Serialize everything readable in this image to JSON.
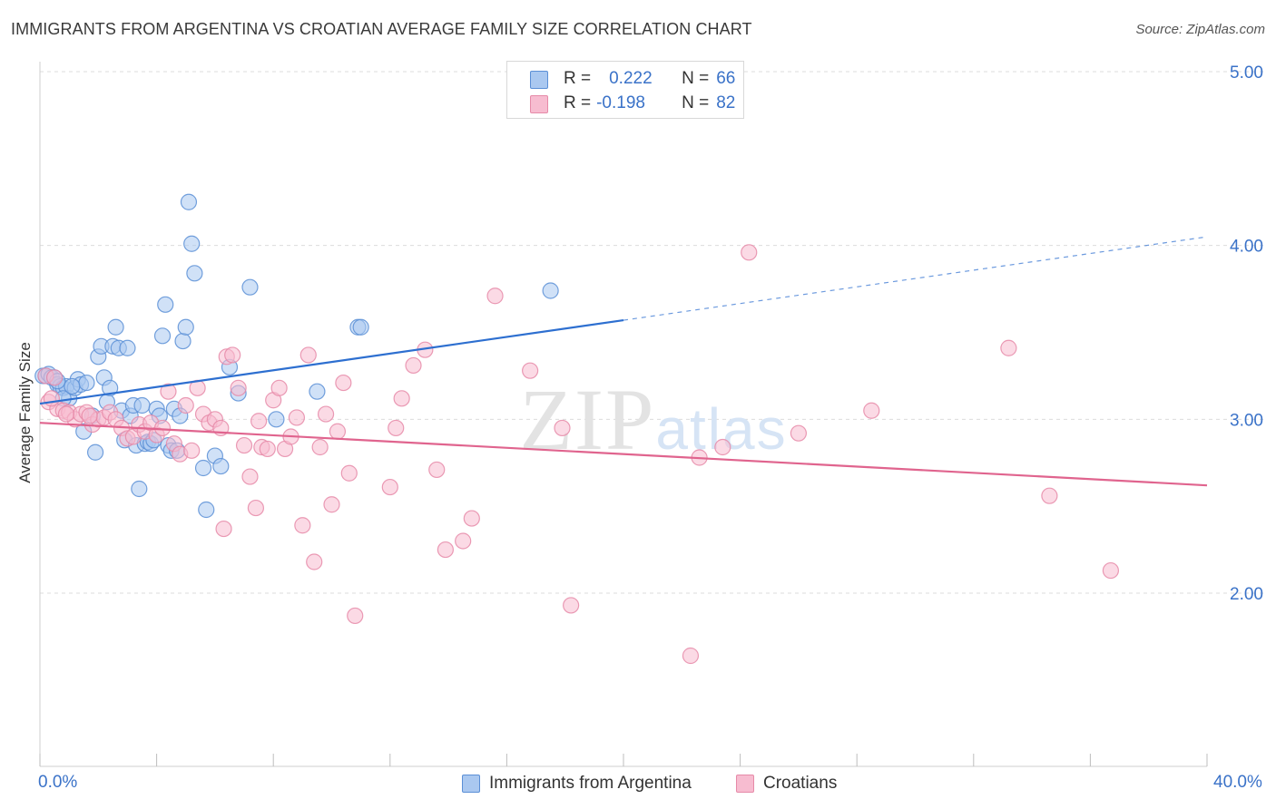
{
  "title": "IMMIGRANTS FROM ARGENTINA VS CROATIAN AVERAGE FAMILY SIZE CORRELATION CHART",
  "source": "Source: ZipAtlas.com",
  "legend": {
    "r_label": "R =",
    "n_label": "N =",
    "rows": [
      {
        "r": "0.222",
        "n": "66"
      },
      {
        "r": "-0.198",
        "n": "82"
      }
    ]
  },
  "colors": {
    "blue_fill": "#aac8f0",
    "blue_stroke": "#5b8fd6",
    "blue_line": "#2d6fd0",
    "pink_fill": "#f7bcd0",
    "pink_stroke": "#e68aa8",
    "pink_line": "#e0648e",
    "grid": "#dcdcdc",
    "axis_text": "#3a72c8"
  },
  "chart_data": {
    "type": "scatter",
    "title": "IMMIGRANTS FROM ARGENTINA VS CROATIAN AVERAGE FAMILY SIZE CORRELATION CHART",
    "xlabel": "",
    "ylabel": "Average Family Size",
    "xlim": [
      0,
      40
    ],
    "ylim": [
      1.2,
      5.1
    ],
    "x_tick_labels": [
      "0.0%",
      "40.0%"
    ],
    "y_ticks": [
      2.0,
      3.0,
      4.0,
      5.0
    ],
    "y_tick_labels": [
      "2.00",
      "3.00",
      "4.00",
      "5.00"
    ],
    "grid": true,
    "legend_position": "top-center",
    "watermark": "ZIPatlas",
    "series": [
      {
        "name": "Immigrants from Argentina",
        "color": "blue",
        "trend": {
          "x0": 0,
          "y0": 3.09,
          "x1": 20,
          "y1": 3.57,
          "dashed_to_x": 40,
          "dashed_to_y": 4.05
        },
        "points": [
          [
            0.1,
            3.25
          ],
          [
            0.2,
            3.25
          ],
          [
            0.3,
            3.26
          ],
          [
            0.4,
            3.24
          ],
          [
            0.5,
            3.24
          ],
          [
            0.6,
            3.2
          ],
          [
            0.7,
            3.19
          ],
          [
            0.8,
            3.18
          ],
          [
            0.9,
            3.19
          ],
          [
            1.0,
            3.12
          ],
          [
            1.2,
            3.18
          ],
          [
            1.3,
            3.23
          ],
          [
            1.4,
            3.2
          ],
          [
            1.5,
            2.93
          ],
          [
            1.6,
            3.21
          ],
          [
            1.8,
            3.02
          ],
          [
            1.9,
            2.81
          ],
          [
            2.0,
            3.36
          ],
          [
            2.1,
            3.42
          ],
          [
            2.2,
            3.24
          ],
          [
            2.3,
            3.1
          ],
          [
            2.4,
            3.18
          ],
          [
            2.5,
            3.42
          ],
          [
            2.6,
            3.53
          ],
          [
            2.7,
            3.41
          ],
          [
            2.8,
            3.05
          ],
          [
            2.9,
            2.88
          ],
          [
            3.0,
            3.41
          ],
          [
            3.1,
            3.02
          ],
          [
            3.2,
            3.08
          ],
          [
            3.3,
            2.85
          ],
          [
            3.4,
            2.6
          ],
          [
            3.5,
            3.08
          ],
          [
            3.6,
            2.86
          ],
          [
            3.7,
            2.87
          ],
          [
            3.8,
            2.86
          ],
          [
            3.9,
            2.88
          ],
          [
            4.0,
            3.06
          ],
          [
            4.1,
            3.02
          ],
          [
            4.2,
            3.48
          ],
          [
            4.3,
            3.66
          ],
          [
            4.4,
            2.85
          ],
          [
            4.5,
            2.82
          ],
          [
            4.6,
            3.06
          ],
          [
            4.7,
            2.82
          ],
          [
            4.8,
            3.02
          ],
          [
            4.9,
            3.45
          ],
          [
            5.0,
            3.53
          ],
          [
            5.1,
            4.25
          ],
          [
            5.2,
            4.01
          ],
          [
            5.3,
            3.84
          ],
          [
            5.6,
            2.72
          ],
          [
            5.7,
            2.48
          ],
          [
            6.0,
            2.79
          ],
          [
            6.2,
            2.73
          ],
          [
            6.5,
            3.3
          ],
          [
            6.8,
            3.15
          ],
          [
            7.2,
            3.76
          ],
          [
            8.1,
            3.0
          ],
          [
            9.5,
            3.16
          ],
          [
            10.9,
            3.53
          ],
          [
            11.0,
            3.53
          ],
          [
            17.5,
            3.74
          ],
          [
            0.8,
            3.12
          ],
          [
            1.1,
            3.19
          ],
          [
            0.6,
            3.22
          ]
        ]
      },
      {
        "name": "Croatians",
        "color": "pink",
        "trend": {
          "x0": 0,
          "y0": 2.98,
          "x1": 40,
          "y1": 2.62
        },
        "points": [
          [
            0.2,
            3.25
          ],
          [
            0.3,
            3.1
          ],
          [
            0.5,
            3.24
          ],
          [
            0.6,
            3.06
          ],
          [
            0.8,
            3.05
          ],
          [
            1.0,
            3.04
          ],
          [
            1.2,
            3.0
          ],
          [
            1.4,
            3.03
          ],
          [
            1.6,
            3.04
          ],
          [
            1.8,
            2.97
          ],
          [
            2.0,
            3.0
          ],
          [
            2.2,
            3.01
          ],
          [
            2.4,
            3.04
          ],
          [
            2.6,
            3.0
          ],
          [
            2.8,
            2.95
          ],
          [
            3.0,
            2.89
          ],
          [
            3.2,
            2.9
          ],
          [
            3.4,
            2.97
          ],
          [
            3.6,
            2.93
          ],
          [
            3.8,
            2.98
          ],
          [
            4.0,
            2.91
          ],
          [
            4.2,
            2.95
          ],
          [
            4.4,
            3.16
          ],
          [
            4.6,
            2.86
          ],
          [
            4.8,
            2.8
          ],
          [
            5.0,
            3.08
          ],
          [
            5.2,
            2.82
          ],
          [
            5.4,
            3.18
          ],
          [
            5.6,
            3.03
          ],
          [
            5.8,
            2.98
          ],
          [
            6.0,
            3.0
          ],
          [
            6.2,
            2.95
          ],
          [
            6.4,
            3.36
          ],
          [
            6.6,
            3.37
          ],
          [
            6.8,
            3.18
          ],
          [
            7.0,
            2.85
          ],
          [
            7.2,
            2.67
          ],
          [
            7.4,
            2.49
          ],
          [
            7.6,
            2.84
          ],
          [
            7.8,
            2.83
          ],
          [
            8.0,
            3.11
          ],
          [
            8.2,
            3.18
          ],
          [
            8.4,
            2.83
          ],
          [
            8.6,
            2.9
          ],
          [
            8.8,
            3.01
          ],
          [
            9.0,
            2.39
          ],
          [
            9.2,
            3.37
          ],
          [
            9.4,
            2.18
          ],
          [
            9.6,
            2.84
          ],
          [
            9.8,
            3.03
          ],
          [
            10.0,
            2.51
          ],
          [
            10.2,
            2.93
          ],
          [
            10.4,
            3.21
          ],
          [
            10.6,
            2.69
          ],
          [
            10.8,
            1.87
          ],
          [
            12.0,
            2.61
          ],
          [
            12.2,
            2.95
          ],
          [
            12.4,
            3.12
          ],
          [
            12.8,
            3.31
          ],
          [
            13.2,
            3.4
          ],
          [
            13.6,
            2.71
          ],
          [
            13.9,
            2.25
          ],
          [
            14.5,
            2.3
          ],
          [
            14.8,
            2.43
          ],
          [
            15.6,
            3.71
          ],
          [
            16.8,
            3.28
          ],
          [
            17.9,
            2.95
          ],
          [
            18.2,
            1.93
          ],
          [
            22.3,
            1.64
          ],
          [
            22.6,
            2.78
          ],
          [
            23.4,
            2.84
          ],
          [
            24.3,
            3.96
          ],
          [
            26.0,
            2.92
          ],
          [
            28.5,
            3.05
          ],
          [
            33.2,
            3.41
          ],
          [
            34.6,
            2.56
          ],
          [
            36.7,
            2.13
          ],
          [
            0.4,
            3.12
          ],
          [
            0.9,
            3.03
          ],
          [
            1.7,
            3.02
          ],
          [
            6.3,
            2.37
          ],
          [
            7.5,
            2.99
          ]
        ]
      }
    ]
  },
  "bottom_legend": {
    "items": [
      "Immigrants from Argentina",
      "Croatians"
    ]
  }
}
